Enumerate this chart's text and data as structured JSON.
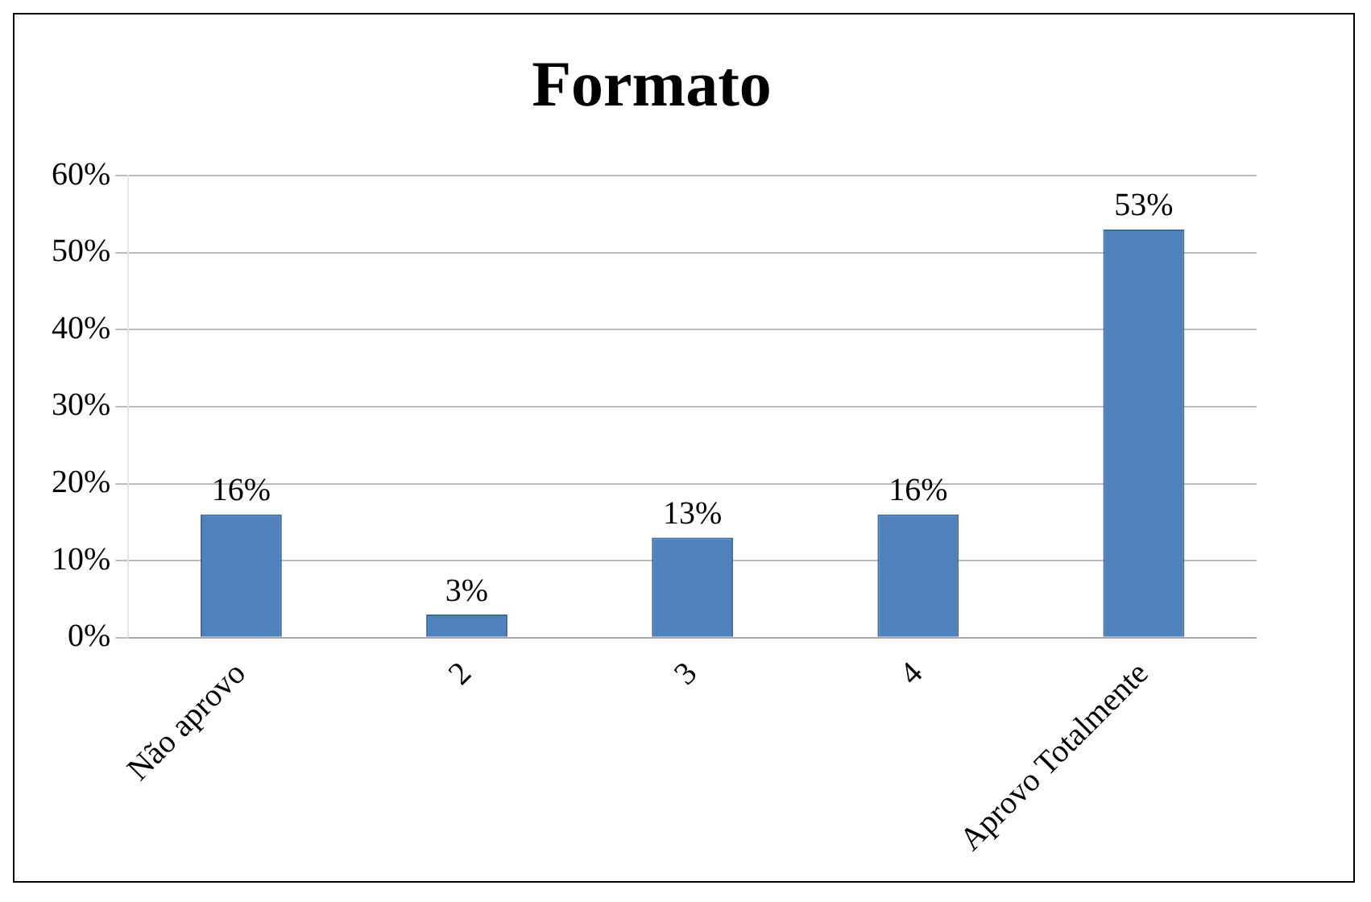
{
  "chart_data": {
    "type": "bar",
    "title": "Formato",
    "categories": [
      "Não aprovo",
      "2",
      "3",
      "4",
      "Aprovo Totalmente"
    ],
    "values": [
      16,
      3,
      13,
      16,
      53
    ],
    "value_labels": [
      "16%",
      "3%",
      "13%",
      "16%",
      "53%"
    ],
    "color": "#4f81bd",
    "ylim": [
      0,
      60
    ],
    "yticks": [
      {
        "value": 0,
        "label": "0%"
      },
      {
        "value": 10,
        "label": "10%"
      },
      {
        "value": 20,
        "label": "20%"
      },
      {
        "value": 30,
        "label": "30%"
      },
      {
        "value": 40,
        "label": "40%"
      },
      {
        "value": 50,
        "label": "50%"
      },
      {
        "value": 60,
        "label": "60%"
      }
    ],
    "grid": "y",
    "legend": false
  }
}
